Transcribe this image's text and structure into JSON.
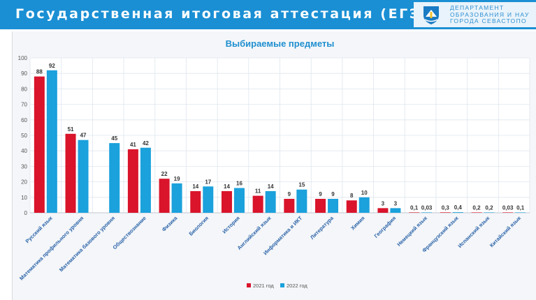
{
  "header": {
    "title": "Государственная итоговая аттестация (ЕГЭ)",
    "dept_line1": "ДЕПАРТАМЕНТ",
    "dept_line2": "ОБРАЗОВАНИЯ И НАУ",
    "dept_line3": "ГОРОДА СЕВАСТОПО"
  },
  "colors": {
    "header_bg": "#1a8fd4",
    "series_2021": "#d9142b",
    "series_2022": "#1ba1dc",
    "title": "#1f8fd0"
  },
  "chart_data": {
    "type": "bar",
    "title": "Выбираемые предметы",
    "xlabel": "",
    "ylabel": "",
    "ylim": [
      0,
      100
    ],
    "yticks": [
      0,
      10,
      20,
      30,
      40,
      50,
      60,
      70,
      80,
      90,
      100
    ],
    "grid": true,
    "legend_position": "bottom-center",
    "categories": [
      "Русский язык",
      "Математика профильного уровня",
      "Математика базового уровня",
      "Обществознание",
      "Физика",
      "Биология",
      "История",
      "Английский язык",
      "Информатика и ИКТ",
      "Литература",
      "Химия",
      "География",
      "Немецкий язык",
      "Французский язык",
      "Испанский язык",
      "Китайский язык"
    ],
    "series": [
      {
        "name": "2021 год",
        "values": [
          88,
          51,
          null,
          41,
          22,
          14,
          14,
          11,
          9,
          9,
          8,
          3,
          0.1,
          0.3,
          0.2,
          0.03
        ],
        "labels": [
          "88",
          "51",
          "",
          "41",
          "22",
          "14",
          "14",
          "11",
          "9",
          "9",
          "8",
          "3",
          "0,1",
          "0,3",
          "0,2",
          "0,03"
        ]
      },
      {
        "name": "2022 год",
        "values": [
          92,
          47,
          45,
          42,
          19,
          17,
          16,
          14,
          15,
          9,
          10,
          3,
          0.03,
          0.4,
          0.2,
          0.1
        ],
        "labels": [
          "92",
          "47",
          "45",
          "42",
          "19",
          "17",
          "16",
          "14",
          "15",
          "9",
          "10",
          "3",
          "0,03",
          "0,4",
          "0,2",
          "0,1"
        ]
      }
    ]
  }
}
